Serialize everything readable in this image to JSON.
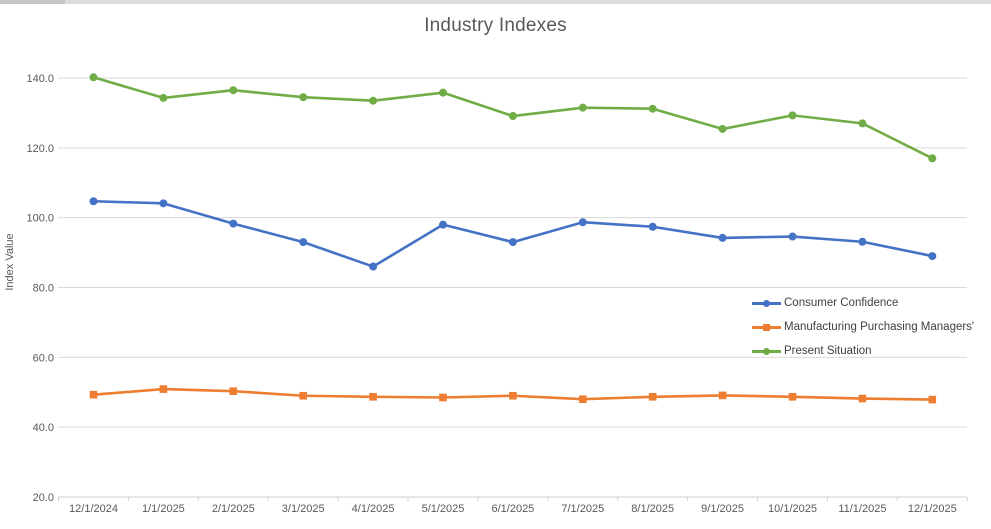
{
  "chart_data": {
    "type": "line",
    "title": "Industry Indexes",
    "xlabel": "",
    "ylabel": "Index Value",
    "ylim": [
      20,
      140
    ],
    "yticks": [
      20,
      40,
      60,
      80,
      100,
      120,
      140
    ],
    "ytick_labels": [
      "20.0",
      "40.0",
      "60.0",
      "80.0",
      "100.0",
      "120.0",
      "140.0"
    ],
    "grid": "horizontal",
    "legend_position": "right-middle",
    "categories": [
      "12/1/2024",
      "1/1/2025",
      "2/1/2025",
      "3/1/2025",
      "4/1/2025",
      "5/1/2025",
      "6/1/2025",
      "7/1/2025",
      "8/1/2025",
      "9/1/2025",
      "10/1/2025",
      "11/1/2025",
      "12/1/2025"
    ],
    "series": [
      {
        "name": "Consumer Confidence",
        "color": "#4472C4",
        "marker": "circle",
        "values": [
          104.7,
          104.1,
          98.3,
          93.0,
          86.0,
          98.0,
          93.0,
          98.7,
          97.4,
          94.2,
          94.6,
          93.1,
          89.0
        ]
      },
      {
        "name": "Manufacturing Purchasing Managers'",
        "color": "#ED7D31",
        "marker": "square",
        "values": [
          49.3,
          50.9,
          50.3,
          49.0,
          48.7,
          48.5,
          49.0,
          48.0,
          48.7,
          49.1,
          48.7,
          48.2,
          47.9
        ]
      },
      {
        "name": "Present Situation",
        "color": "#70AD47",
        "marker": "circle",
        "values": [
          140.2,
          134.3,
          136.5,
          134.5,
          133.5,
          135.8,
          129.1,
          131.5,
          131.2,
          125.4,
          129.3,
          127.0,
          117.0
        ]
      }
    ]
  },
  "colors": {
    "gridline": "#d9d9d9",
    "axis_line": "#d0d0d0",
    "axis_text": "#595959",
    "title_text": "#595959",
    "legend_text": "#404040",
    "background": "#ffffff"
  }
}
